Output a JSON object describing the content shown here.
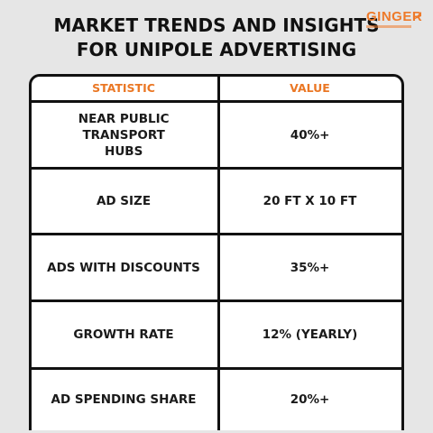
{
  "title": {
    "line1": "MARKET TRENDS AND INSIGHTS",
    "line2": "FOR UNIPOLE ADVERTISING"
  },
  "logo": {
    "brand": "GINGER",
    "accent_color": "#ee7a2a"
  },
  "table": {
    "headers": {
      "statistic": "STATISTIC",
      "value": "VALUE"
    },
    "rows": [
      {
        "statistic": "NEAR PUBLIC TRANSPORT HUBS",
        "value": "40%+"
      },
      {
        "statistic": "AD SIZE",
        "value": "20 FT X 10 FT"
      },
      {
        "statistic": "ADS WITH DISCOUNTS",
        "value": "35%+"
      },
      {
        "statistic": "GROWTH RATE",
        "value": "12% (YEARLY)"
      },
      {
        "statistic": "AD SPENDING SHARE",
        "value": "20%+"
      }
    ]
  },
  "colors": {
    "background": "#e6e6e6",
    "header_text": "#ea7724",
    "border": "#111111",
    "table_bg": "#ffffff"
  }
}
